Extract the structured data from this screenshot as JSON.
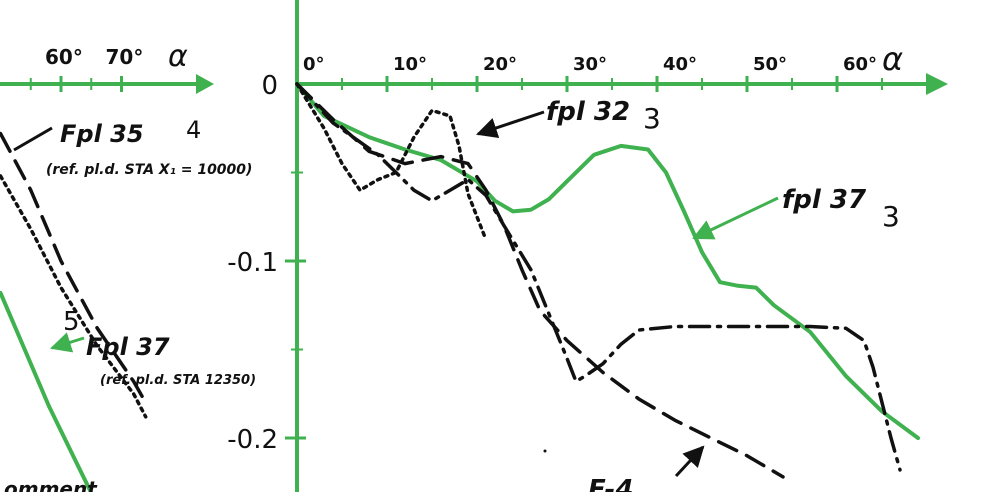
{
  "colors": {
    "green": "#3fb14f",
    "black": "#111111",
    "paper": "#ffffff"
  },
  "chart_data": [
    {
      "type": "line",
      "xlabel": "α",
      "ylabel": "",
      "xlim": [
        0,
        68
      ],
      "ylim": [
        -0.22,
        0.02
      ],
      "x_ticks": [
        {
          "v": 0,
          "label": "0°"
        },
        {
          "v": 10,
          "label": "10°"
        },
        {
          "v": 20,
          "label": "20°"
        },
        {
          "v": 30,
          "label": "30°"
        },
        {
          "v": 40,
          "label": "40°"
        },
        {
          "v": 50,
          "label": "50°"
        },
        {
          "v": 60,
          "label": "60°"
        }
      ],
      "y_ticks": [
        {
          "v": 0,
          "label": "0"
        },
        {
          "v": -0.1,
          "label": "-0.1"
        },
        {
          "v": -0.2,
          "label": "-0.2"
        }
      ],
      "series": [
        {
          "name": "fpl 37",
          "number": "3",
          "color": "#3fb14f",
          "style": "solid",
          "points": [
            [
              0,
              0
            ],
            [
              3,
              -0.018
            ],
            [
              8,
              -0.03
            ],
            [
              12,
              -0.037
            ],
            [
              16,
              -0.043
            ],
            [
              20,
              -0.055
            ],
            [
              22,
              -0.066
            ],
            [
              24,
              -0.072
            ],
            [
              26,
              -0.071
            ],
            [
              28,
              -0.065
            ],
            [
              30,
              -0.055
            ],
            [
              33,
              -0.04
            ],
            [
              36,
              -0.035
            ],
            [
              39,
              -0.037
            ],
            [
              41,
              -0.05
            ],
            [
              43,
              -0.072
            ],
            [
              45,
              -0.095
            ],
            [
              47,
              -0.112
            ],
            [
              49,
              -0.114
            ],
            [
              51,
              -0.115
            ],
            [
              53,
              -0.125
            ],
            [
              57,
              -0.14
            ],
            [
              61,
              -0.165
            ],
            [
              65,
              -0.185
            ],
            [
              69,
              -0.2
            ]
          ]
        },
        {
          "name": "fpl 32",
          "number": "3",
          "color": "#111111",
          "style": "dotted",
          "points": [
            [
              0,
              0
            ],
            [
              3,
              -0.025
            ],
            [
              5,
              -0.045
            ],
            [
              7,
              -0.06
            ],
            [
              9,
              -0.054
            ],
            [
              11,
              -0.05
            ],
            [
              13,
              -0.03
            ],
            [
              15,
              -0.015
            ],
            [
              17,
              -0.018
            ],
            [
              18,
              -0.035
            ],
            [
              19,
              -0.062
            ],
            [
              20,
              -0.075
            ],
            [
              21,
              -0.088
            ]
          ]
        },
        {
          "name": "",
          "color": "#111111",
          "style": "dashed",
          "points": [
            [
              0,
              0
            ],
            [
              4,
              -0.02
            ],
            [
              8,
              -0.038
            ],
            [
              12,
              -0.045
            ],
            [
              16,
              -0.041
            ],
            [
              19,
              -0.045
            ],
            [
              21,
              -0.06
            ],
            [
              23,
              -0.08
            ],
            [
              25,
              -0.105
            ],
            [
              27,
              -0.128
            ],
            [
              30,
              -0.145
            ],
            [
              34,
              -0.163
            ],
            [
              38,
              -0.178
            ],
            [
              42,
              -0.19
            ],
            [
              46,
              -0.2
            ],
            [
              50,
              -0.21
            ],
            [
              54,
              -0.222
            ]
          ]
        },
        {
          "name": "",
          "color": "#111111",
          "style": "dashdot",
          "points": [
            [
              0,
              0
            ],
            [
              4,
              -0.022
            ],
            [
              9,
              -0.04
            ],
            [
              13,
              -0.06
            ],
            [
              15,
              -0.066
            ],
            [
              17,
              -0.06
            ],
            [
              19,
              -0.054
            ],
            [
              21,
              -0.063
            ],
            [
              23,
              -0.08
            ],
            [
              26,
              -0.105
            ],
            [
              28,
              -0.13
            ],
            [
              30,
              -0.155
            ],
            [
              31,
              -0.168
            ],
            [
              32,
              -0.165
            ],
            [
              34,
              -0.158
            ],
            [
              36,
              -0.147
            ],
            [
              38,
              -0.139
            ],
            [
              42,
              -0.137
            ],
            [
              50,
              -0.137
            ],
            [
              57,
              -0.137
            ],
            [
              61,
              -0.138
            ],
            [
              63,
              -0.145
            ],
            [
              64,
              -0.16
            ],
            [
              65,
              -0.18
            ],
            [
              66,
              -0.2
            ],
            [
              67,
              -0.218
            ]
          ]
        }
      ],
      "annotations": [
        {
          "text": "fpl 32",
          "number": "3"
        },
        {
          "text": "fpl 37",
          "number": "3"
        },
        {
          "text": "F-4"
        }
      ]
    },
    {
      "type": "line",
      "xlabel": "α",
      "x_ticks": [
        {
          "v": 60,
          "label": "60°"
        },
        {
          "v": 70,
          "label": "70°"
        }
      ],
      "xlim": [
        50,
        76
      ],
      "ylim": [
        -0.22,
        0.02
      ],
      "series": [
        {
          "name": "Fpl 35",
          "number": "4",
          "note": "(ref. pl.d. STA X₁ = 10000)",
          "color": "#111111",
          "style": "dashed",
          "points": [
            [
              50,
              -0.028
            ],
            [
              55,
              -0.06
            ],
            [
              60,
              -0.1
            ],
            [
              66,
              -0.138
            ],
            [
              72,
              -0.168
            ],
            [
              74,
              -0.18
            ]
          ]
        },
        {
          "name": "",
          "color": "#111111",
          "style": "dotted",
          "points": [
            [
              50,
              -0.052
            ],
            [
              55,
              -0.082
            ],
            [
              60,
              -0.115
            ],
            [
              66,
              -0.148
            ],
            [
              72,
              -0.175
            ],
            [
              74,
              -0.188
            ]
          ]
        },
        {
          "name": "Fpl 37",
          "number": "5",
          "note": "(ref. pl.d. STA 12350)",
          "color": "#3fb14f",
          "style": "solid",
          "points": [
            [
              50,
              -0.118
            ],
            [
              54,
              -0.15
            ],
            [
              58,
              -0.182
            ],
            [
              62,
              -0.21
            ],
            [
              66,
              -0.238
            ]
          ]
        }
      ],
      "footer_fragment": "omment"
    }
  ]
}
